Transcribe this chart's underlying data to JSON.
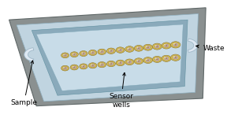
{
  "bg_color": "#ffffff",
  "device_color": "#8a9090",
  "device_edge": "#606868",
  "channel_color": "#c0d4e0",
  "inner_dark": "#8aaabb",
  "flow_color": "#c8dce8",
  "well_outer_color": "#d4c060",
  "well_inner_color": "#e8d870",
  "well_center_color": "#b09040",
  "well_purple": "#c0a8c8",
  "well_highlight_color": "#f8f0a0",
  "port_color": "#e0e8f0",
  "port_edge": "#a0b8c8",
  "label_sample": "Sample",
  "label_sensor_wells": "Sensor\nwells",
  "label_waste": "Waste",
  "fig_width": 2.88,
  "fig_height": 1.55,
  "dpi": 100,
  "n_wells": 13,
  "font_size": 6.5
}
